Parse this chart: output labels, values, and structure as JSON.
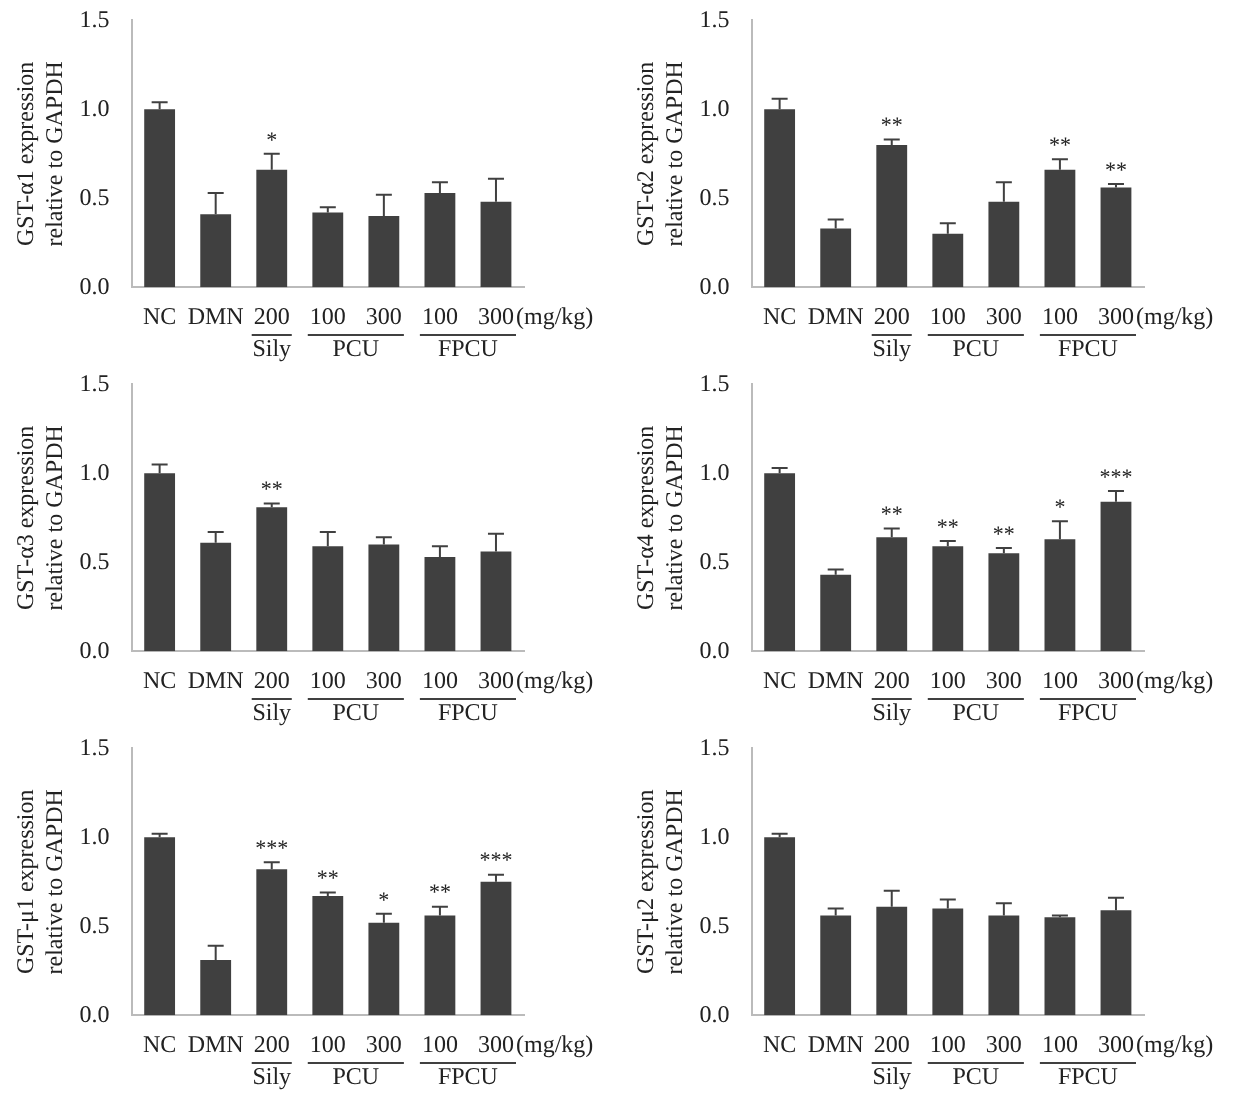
{
  "chart_data": [
    {
      "type": "bar",
      "ylabel": "GST-α1 expression\nrelative to GAPDH",
      "categories": [
        "NC",
        "DMN",
        "200",
        "100",
        "300",
        "100",
        "300"
      ],
      "color": "#404040",
      "values": [
        1.0,
        0.41,
        0.66,
        0.42,
        0.4,
        0.53,
        0.48
      ],
      "errors": [
        [
          1.0,
          1.04
        ],
        [
          0.41,
          0.53
        ],
        [
          0.66,
          0.75
        ],
        [
          0.42,
          0.45
        ],
        [
          0.4,
          0.52
        ],
        [
          0.53,
          0.59
        ],
        [
          0.48,
          0.61
        ]
      ],
      "value_labels": [
        null,
        null,
        "*",
        null,
        null,
        null,
        null
      ],
      "ylim": [
        0,
        1.5
      ],
      "yticks": [
        {
          "value": 0,
          "label": "0.0"
        },
        {
          "value": 0.5,
          "label": "0.5"
        },
        {
          "value": 1,
          "label": "1.0"
        },
        {
          "value": 1.5,
          "label": "1.5"
        }
      ],
      "grid": false,
      "legend": false,
      "annotations": [
        "Sily",
        "PCU",
        "FPCU",
        "(mg/kg)"
      ]
    },
    {
      "type": "bar",
      "ylabel": "GST-α2 expression\nrelative to GAPDH",
      "categories": [
        "NC",
        "DMN",
        "200",
        "100",
        "300",
        "100",
        "300"
      ],
      "color": "#404040",
      "values": [
        1.0,
        0.33,
        0.8,
        0.3,
        0.48,
        0.66,
        0.56
      ],
      "errors": [
        [
          1.0,
          1.06
        ],
        [
          0.33,
          0.38
        ],
        [
          0.8,
          0.83
        ],
        [
          0.3,
          0.36
        ],
        [
          0.48,
          0.59
        ],
        [
          0.66,
          0.72
        ],
        [
          0.56,
          0.58
        ]
      ],
      "value_labels": [
        null,
        null,
        "**",
        null,
        null,
        "**",
        "**"
      ],
      "ylim": [
        0,
        1.5
      ],
      "yticks": [
        {
          "value": 0,
          "label": "0.0"
        },
        {
          "value": 0.5,
          "label": "0.5"
        },
        {
          "value": 1,
          "label": "1.0"
        },
        {
          "value": 1.5,
          "label": "1.5"
        }
      ],
      "grid": false,
      "legend": false,
      "annotations": [
        "Sily",
        "PCU",
        "FPCU",
        "(mg/kg)"
      ]
    },
    {
      "type": "bar",
      "ylabel": "GST-α3 expression\nrelative to GAPDH",
      "categories": [
        "NC",
        "DMN",
        "200",
        "100",
        "300",
        "100",
        "300"
      ],
      "color": "#404040",
      "values": [
        1.0,
        0.61,
        0.81,
        0.59,
        0.6,
        0.53,
        0.56
      ],
      "errors": [
        [
          1.0,
          1.05
        ],
        [
          0.61,
          0.67
        ],
        [
          0.81,
          0.83
        ],
        [
          0.59,
          0.67
        ],
        [
          0.6,
          0.64
        ],
        [
          0.53,
          0.59
        ],
        [
          0.56,
          0.66
        ]
      ],
      "value_labels": [
        null,
        null,
        "**",
        null,
        null,
        null,
        null
      ],
      "ylim": [
        0,
        1.5
      ],
      "yticks": [
        {
          "value": 0,
          "label": "0.0"
        },
        {
          "value": 0.5,
          "label": "0.5"
        },
        {
          "value": 1,
          "label": "1.0"
        },
        {
          "value": 1.5,
          "label": "1.5"
        }
      ],
      "grid": false,
      "legend": false,
      "annotations": [
        "Sily",
        "PCU",
        "FPCU",
        "(mg/kg)"
      ]
    },
    {
      "type": "bar",
      "ylabel": "GST-α4 expression\nrelative to GAPDH",
      "categories": [
        "NC",
        "DMN",
        "200",
        "100",
        "300",
        "100",
        "300"
      ],
      "color": "#404040",
      "values": [
        1.0,
        0.43,
        0.64,
        0.59,
        0.55,
        0.63,
        0.84
      ],
      "errors": [
        [
          1.0,
          1.03
        ],
        [
          0.43,
          0.46
        ],
        [
          0.64,
          0.69
        ],
        [
          0.59,
          0.62
        ],
        [
          0.55,
          0.58
        ],
        [
          0.63,
          0.73
        ],
        [
          0.84,
          0.9
        ]
      ],
      "value_labels": [
        null,
        null,
        "**",
        "**",
        "**",
        "*",
        "***"
      ],
      "ylim": [
        0,
        1.5
      ],
      "yticks": [
        {
          "value": 0,
          "label": "0.0"
        },
        {
          "value": 0.5,
          "label": "0.5"
        },
        {
          "value": 1,
          "label": "1.0"
        },
        {
          "value": 1.5,
          "label": "1.5"
        }
      ],
      "grid": false,
      "legend": false,
      "annotations": [
        "Sily",
        "PCU",
        "FPCU",
        "(mg/kg)"
      ]
    },
    {
      "type": "bar",
      "ylabel": "GST-μ1 expression\nrelative to GAPDH",
      "categories": [
        "NC",
        "DMN",
        "200",
        "100",
        "300",
        "100",
        "300"
      ],
      "color": "#404040",
      "values": [
        1.0,
        0.31,
        0.82,
        0.67,
        0.52,
        0.56,
        0.75
      ],
      "errors": [
        [
          1.0,
          1.02
        ],
        [
          0.31,
          0.39
        ],
        [
          0.82,
          0.86
        ],
        [
          0.67,
          0.69
        ],
        [
          0.52,
          0.57
        ],
        [
          0.56,
          0.61
        ],
        [
          0.75,
          0.79
        ]
      ],
      "value_labels": [
        null,
        null,
        "***",
        "**",
        "*",
        "**",
        "***"
      ],
      "ylim": [
        0,
        1.5
      ],
      "yticks": [
        {
          "value": 0,
          "label": "0.0"
        },
        {
          "value": 0.5,
          "label": "0.5"
        },
        {
          "value": 1,
          "label": "1.0"
        },
        {
          "value": 1.5,
          "label": "1.5"
        }
      ],
      "grid": false,
      "legend": false,
      "annotations": [
        "Sily",
        "PCU",
        "FPCU",
        "(mg/kg)"
      ]
    },
    {
      "type": "bar",
      "ylabel": "GST-μ2 expression\nrelative to GAPDH",
      "categories": [
        "NC",
        "DMN",
        "200",
        "100",
        "300",
        "100",
        "300"
      ],
      "color": "#404040",
      "values": [
        1.0,
        0.56,
        0.61,
        0.6,
        0.56,
        0.55,
        0.59
      ],
      "errors": [
        [
          1.0,
          1.02
        ],
        [
          0.56,
          0.6
        ],
        [
          0.61,
          0.7
        ],
        [
          0.6,
          0.65
        ],
        [
          0.56,
          0.63
        ],
        [
          0.55,
          0.56
        ],
        [
          0.59,
          0.66
        ]
      ],
      "value_labels": [
        null,
        null,
        null,
        null,
        null,
        null,
        null
      ],
      "ylim": [
        0,
        1.5
      ],
      "yticks": [
        {
          "value": 0,
          "label": "0.0"
        },
        {
          "value": 0.5,
          "label": "0.5"
        },
        {
          "value": 1,
          "label": "1.0"
        },
        {
          "value": 1.5,
          "label": "1.5"
        }
      ],
      "grid": false,
      "legend": false,
      "annotations": [
        "Sily",
        "PCU",
        "FPCU",
        "(mg/kg)"
      ]
    }
  ]
}
